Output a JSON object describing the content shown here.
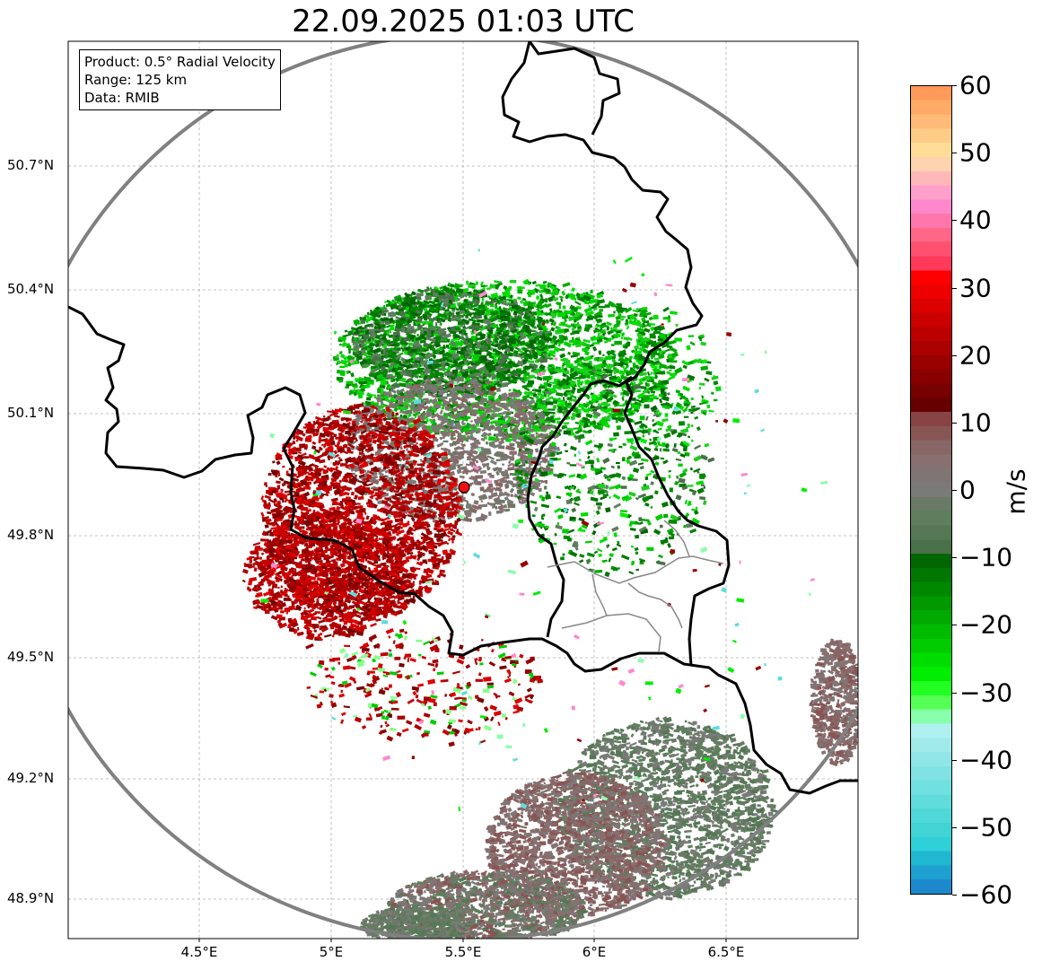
{
  "title": "22.09.2025 01:03 UTC",
  "info": {
    "product": "Product: 0.5° Radial Velocity",
    "range": "Range: 125 km",
    "data": "Data: RMIB"
  },
  "axes": {
    "lon_ticks": [
      "4.5°E",
      "5°E",
      "5.5°E",
      "6°E",
      "6.5°E"
    ],
    "lat_ticks": [
      "50.7°N",
      "50.4°N",
      "50.1°N",
      "49.8°N",
      "49.5°N",
      "49.2°N",
      "48.9°N"
    ]
  },
  "colorbar": {
    "label": "m/s",
    "ticks": [
      "60",
      "50",
      "40",
      "30",
      "20",
      "10",
      "0",
      "−10",
      "−20",
      "−30",
      "−40",
      "−50",
      "−60"
    ],
    "colors": [
      "#ff9a5a",
      "#ffaa66",
      "#ffbb77",
      "#ffcc88",
      "#ffdd99",
      "#ffd3b0",
      "#ffb8b8",
      "#ff9fcc",
      "#ff88cc",
      "#ff77aa",
      "#ff6688",
      "#ff5070",
      "#ff3a5a",
      "#ff0000",
      "#ee0000",
      "#dd0000",
      "#cc0000",
      "#bb0000",
      "#aa0000",
      "#990000",
      "#880000",
      "#770000",
      "#660000",
      "#884444",
      "#885555",
      "#886666",
      "#887070",
      "#807575",
      "#7a7a78",
      "#6a7a66",
      "#5e7e5e",
      "#557755",
      "#4a704a",
      "#006600",
      "#007700",
      "#008800",
      "#009900",
      "#00aa00",
      "#00bb00",
      "#00cc00",
      "#00dd00",
      "#00ee00",
      "#22ff22",
      "#55ff55",
      "#88ffaa",
      "#b0f0f0",
      "#a0eaea",
      "#90e6e6",
      "#80e2e2",
      "#70e0e0",
      "#60dcdc",
      "#50d8d8",
      "#40d4d4",
      "#30d0d8",
      "#20b8d0",
      "#1ea0d0",
      "#1e88cc"
    ]
  },
  "radar_site": {
    "lon": 5.5,
    "lat": 49.91,
    "name": ""
  }
}
